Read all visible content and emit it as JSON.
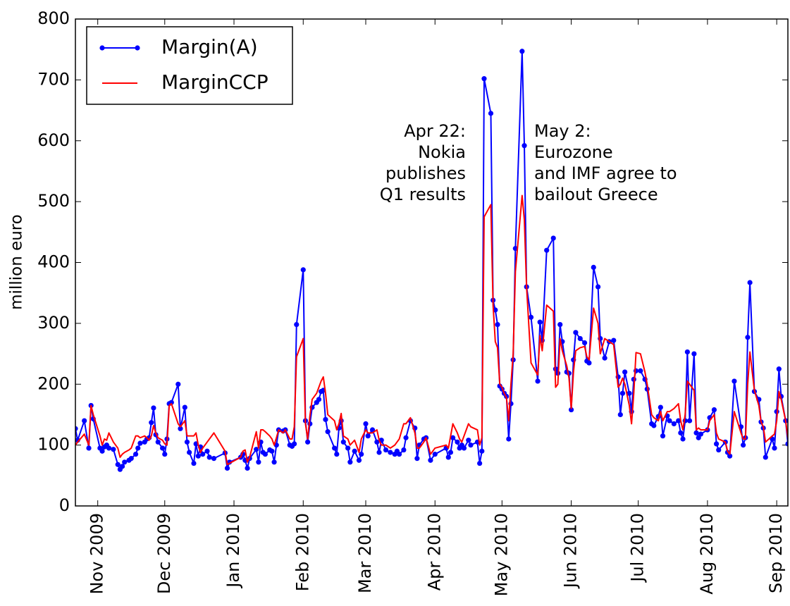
{
  "chart_data": {
    "type": "line",
    "ylabel": "million euro",
    "x": [
      "2009-10-22",
      "2009-10-23",
      "2009-10-26",
      "2009-10-28",
      "2009-10-29",
      "2009-10-30",
      "2009-11-02",
      "2009-11-03",
      "2009-11-04",
      "2009-11-05",
      "2009-11-06",
      "2009-11-08",
      "2009-11-10",
      "2009-11-11",
      "2009-11-12",
      "2009-11-13",
      "2009-11-15",
      "2009-11-16",
      "2009-11-18",
      "2009-11-19",
      "2009-11-20",
      "2009-11-22",
      "2009-11-23",
      "2009-11-24",
      "2009-11-25",
      "2009-11-26",
      "2009-11-27",
      "2009-11-28",
      "2009-11-30",
      "2009-12-01",
      "2009-12-02",
      "2009-12-03",
      "2009-12-04",
      "2009-12-07",
      "2009-12-08",
      "2009-12-10",
      "2009-12-11",
      "2009-12-12",
      "2009-12-14",
      "2009-12-15",
      "2009-12-16",
      "2009-12-17",
      "2009-12-18",
      "2009-12-20",
      "2009-12-21",
      "2009-12-23",
      "2009-12-28",
      "2009-12-29",
      "2009-12-30",
      "2010-01-04",
      "2010-01-05",
      "2010-01-06",
      "2010-01-07",
      "2010-01-08",
      "2010-01-11",
      "2010-01-12",
      "2010-01-13",
      "2010-01-14",
      "2010-01-15",
      "2010-01-17",
      "2010-01-18",
      "2010-01-19",
      "2010-01-20",
      "2010-01-21",
      "2010-01-23",
      "2010-01-24",
      "2010-01-26",
      "2010-01-27",
      "2010-01-28",
      "2010-01-29",
      "2010-02-01",
      "2010-02-02",
      "2010-02-03",
      "2010-02-04",
      "2010-02-05",
      "2010-02-07",
      "2010-02-08",
      "2010-02-09",
      "2010-02-10",
      "2010-02-11",
      "2010-02-12",
      "2010-02-15",
      "2010-02-16",
      "2010-02-17",
      "2010-02-18",
      "2010-02-19",
      "2010-02-21",
      "2010-02-22",
      "2010-02-24",
      "2010-02-26",
      "2010-02-27",
      "2010-03-01",
      "2010-03-02",
      "2010-03-04",
      "2010-03-06",
      "2010-03-07",
      "2010-03-08",
      "2010-03-10",
      "2010-03-12",
      "2010-03-14",
      "2010-03-15",
      "2010-03-16",
      "2010-03-18",
      "2010-03-19",
      "2010-03-21",
      "2010-03-23",
      "2010-03-24",
      "2010-03-25",
      "2010-03-27",
      "2010-03-28",
      "2010-03-30",
      "2010-04-01",
      "2010-04-06",
      "2010-04-07",
      "2010-04-08",
      "2010-04-09",
      "2010-04-11",
      "2010-04-12",
      "2010-04-13",
      "2010-04-14",
      "2010-04-16",
      "2010-04-17",
      "2010-04-20",
      "2010-04-21",
      "2010-04-22",
      "2010-04-23",
      "2010-04-26",
      "2010-04-27",
      "2010-04-28",
      "2010-04-29",
      "2010-04-30",
      "2010-05-01",
      "2010-05-02",
      "2010-05-03",
      "2010-05-04",
      "2010-05-05",
      "2010-05-06",
      "2010-05-07",
      "2010-05-10",
      "2010-05-11",
      "2010-05-12",
      "2010-05-14",
      "2010-05-17",
      "2010-05-18",
      "2010-05-19",
      "2010-05-21",
      "2010-05-24",
      "2010-05-25",
      "2010-05-26",
      "2010-05-27",
      "2010-05-28",
      "2010-05-30",
      "2010-05-31",
      "2010-06-01",
      "2010-06-02",
      "2010-06-03",
      "2010-06-05",
      "2010-06-07",
      "2010-06-08",
      "2010-06-09",
      "2010-06-11",
      "2010-06-13",
      "2010-06-14",
      "2010-06-16",
      "2010-06-18",
      "2010-06-20",
      "2010-06-22",
      "2010-06-23",
      "2010-06-24",
      "2010-06-25",
      "2010-06-27",
      "2010-06-28",
      "2010-06-29",
      "2010-06-30",
      "2010-07-02",
      "2010-07-04",
      "2010-07-05",
      "2010-07-07",
      "2010-07-08",
      "2010-07-10",
      "2010-07-11",
      "2010-07-12",
      "2010-07-14",
      "2010-07-15",
      "2010-07-17",
      "2010-07-19",
      "2010-07-20",
      "2010-07-21",
      "2010-07-22",
      "2010-07-23",
      "2010-07-24",
      "2010-07-26",
      "2010-07-27",
      "2010-07-28",
      "2010-07-29",
      "2010-08-01",
      "2010-08-02",
      "2010-08-04",
      "2010-08-05",
      "2010-08-06",
      "2010-08-09",
      "2010-08-10",
      "2010-08-11",
      "2010-08-13",
      "2010-08-16",
      "2010-08-17",
      "2010-08-18",
      "2010-08-19",
      "2010-08-20",
      "2010-08-22",
      "2010-08-24",
      "2010-08-25",
      "2010-08-26",
      "2010-08-27",
      "2010-08-30",
      "2010-08-31",
      "2010-09-01",
      "2010-09-02",
      "2010-09-03",
      "2010-09-05",
      "2010-09-06"
    ],
    "series": [
      {
        "name": "Margin(A)",
        "color": "#0000ff",
        "marker": "circle",
        "values": [
          127,
          108,
          140,
          95,
          165,
          143,
          95,
          90,
          97,
          100,
          95,
          93,
          68,
          60,
          65,
          72,
          75,
          78,
          85,
          95,
          103,
          105,
          110,
          112,
          137,
          161,
          117,
          105,
          95,
          85,
          110,
          168,
          170,
          200,
          127,
          162,
          105,
          88,
          70,
          102,
          82,
          97,
          85,
          90,
          80,
          78,
          87,
          62,
          72,
          80,
          85,
          75,
          62,
          78,
          93,
          72,
          105,
          88,
          85,
          92,
          90,
          72,
          100,
          125,
          123,
          125,
          100,
          98,
          102,
          298,
          388,
          140,
          105,
          135,
          162,
          170,
          175,
          188,
          190,
          142,
          122,
          95,
          85,
          128,
          140,
          105,
          95,
          72,
          90,
          75,
          85,
          135,
          115,
          125,
          105,
          88,
          108,
          92,
          88,
          85,
          90,
          85,
          92,
          112,
          140,
          128,
          78,
          100,
          110,
          112,
          75,
          85,
          95,
          80,
          88,
          112,
          105,
          95,
          100,
          95,
          108,
          100,
          105,
          70,
          90,
          702,
          645,
          338,
          322,
          298,
          197,
          192,
          185,
          180,
          110,
          168,
          240,
          423,
          747,
          592,
          360,
          310,
          205,
          302,
          272,
          420,
          440,
          225,
          218,
          298,
          270,
          220,
          218,
          158,
          240,
          285,
          275,
          268,
          238,
          235,
          392,
          360,
          275,
          243,
          270,
          272,
          212,
          150,
          185,
          220,
          185,
          155,
          208,
          222,
          222,
          208,
          192,
          135,
          132,
          147,
          162,
          115,
          148,
          140,
          135,
          140,
          120,
          110,
          140,
          253,
          140,
          250,
          120,
          112,
          118,
          125,
          145,
          158,
          102,
          92,
          105,
          88,
          82,
          205,
          130,
          100,
          112,
          277,
          367,
          188,
          175,
          138,
          128,
          80,
          110,
          95,
          155,
          225,
          180,
          140,
          102
        ]
      },
      {
        "name": "MarginCCP",
        "color": "#ff0000",
        "values": [
          100,
          105,
          118,
          100,
          165,
          150,
          115,
          100,
          110,
          108,
          120,
          105,
          95,
          80,
          85,
          88,
          92,
          95,
          115,
          115,
          112,
          115,
          112,
          108,
          115,
          132,
          120,
          112,
          108,
          102,
          100,
          165,
          168,
          135,
          130,
          140,
          115,
          115,
          115,
          120,
          100,
          88,
          95,
          105,
          110,
          120,
          90,
          68,
          70,
          80,
          90,
          92,
          72,
          80,
          122,
          95,
          125,
          125,
          122,
          115,
          110,
          100,
          112,
          125,
          120,
          125,
          110,
          110,
          130,
          245,
          275,
          135,
          110,
          148,
          175,
          185,
          195,
          205,
          212,
          185,
          150,
          140,
          125,
          135,
          152,
          115,
          110,
          100,
          108,
          88,
          110,
          125,
          120,
          120,
          125,
          108,
          100,
          100,
          95,
          100,
          105,
          110,
          135,
          135,
          145,
          120,
          95,
          95,
          105,
          112,
          85,
          95,
          100,
          95,
          115,
          135,
          120,
          110,
          105,
          115,
          135,
          130,
          125,
          100,
          112,
          475,
          495,
          330,
          270,
          260,
          200,
          195,
          185,
          178,
          140,
          200,
          250,
          385,
          510,
          470,
          360,
          235,
          215,
          280,
          255,
          330,
          320,
          195,
          200,
          275,
          255,
          230,
          210,
          160,
          220,
          255,
          260,
          262,
          245,
          240,
          325,
          300,
          250,
          275,
          270,
          265,
          195,
          200,
          210,
          200,
          165,
          135,
          185,
          252,
          250,
          220,
          200,
          150,
          145,
          140,
          155,
          140,
          155,
          155,
          160,
          168,
          140,
          125,
          150,
          205,
          200,
          190,
          125,
          128,
          125,
          125,
          140,
          150,
          120,
          110,
          105,
          90,
          85,
          155,
          120,
          110,
          110,
          200,
          253,
          190,
          165,
          138,
          130,
          105,
          115,
          118,
          140,
          188,
          175,
          140,
          112
        ]
      }
    ],
    "xlim": [
      "2009-10-22",
      "2010-09-06"
    ],
    "xticks": [
      {
        "value": "2009-11-01",
        "label": "Nov 2009"
      },
      {
        "value": "2009-12-01",
        "label": "Dec 2009"
      },
      {
        "value": "2010-01-01",
        "label": "Jan 2010"
      },
      {
        "value": "2010-02-01",
        "label": "Feb 2010"
      },
      {
        "value": "2010-03-01",
        "label": "Mar 2010"
      },
      {
        "value": "2010-04-01",
        "label": "Apr 2010"
      },
      {
        "value": "2010-05-01",
        "label": "May 2010"
      },
      {
        "value": "2010-06-01",
        "label": "Jun 2010"
      },
      {
        "value": "2010-07-01",
        "label": "Jul 2010"
      },
      {
        "value": "2010-08-01",
        "label": "Aug 2010"
      },
      {
        "value": "2010-09-01",
        "label": "Sep 2010"
      }
    ],
    "ylim": [
      0,
      800
    ],
    "yticks": [
      0,
      100,
      200,
      300,
      400,
      500,
      600,
      700,
      800
    ],
    "legend": "upper left",
    "annotations": [
      {
        "lines": [
          "Apr 22:",
          "Nokia",
          "publishes",
          "Q1 results"
        ],
        "align": "right"
      },
      {
        "lines": [
          "May 2:",
          "Eurozone",
          "and IMF agree to",
          "bailout Greece"
        ],
        "align": "left"
      }
    ]
  }
}
